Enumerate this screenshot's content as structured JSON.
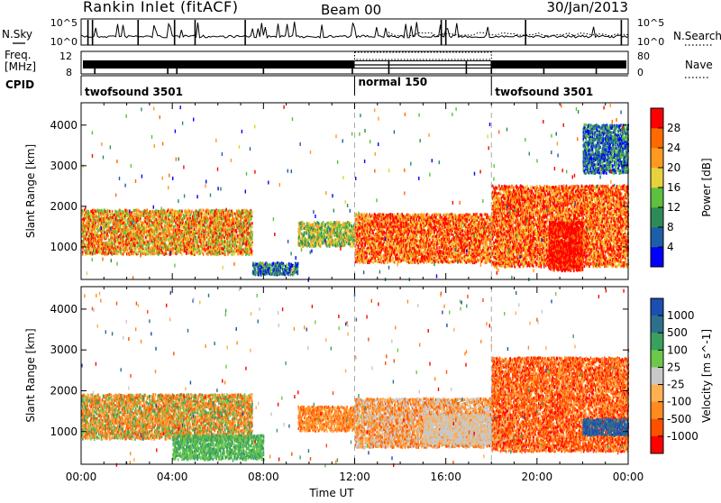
{
  "header": {
    "title": "Rankin Inlet (fitACF)",
    "beam": "Beam 00",
    "date": "30/Jan/2013"
  },
  "top_panels": {
    "nsky_label": "N.Sky",
    "nsky_ticks": [
      "10^5",
      "10^0"
    ],
    "nsearch_ticks": [
      "10^5",
      "10^0"
    ],
    "nsearch_label": "N.Search",
    "freq_label_1": "Freq.",
    "freq_label_2": "[MHz]",
    "freq_ticks": [
      "12",
      "8"
    ],
    "nave_ticks": [
      "80",
      "0"
    ],
    "nave_label": "Nave",
    "cpid_label": "CPID",
    "cpid_segments": [
      {
        "label": "twofsound 3501",
        "start_h": 0,
        "end_h": 12
      },
      {
        "label": "normal 150",
        "start_h": 12,
        "end_h": 18
      },
      {
        "label": "twofsound 3501",
        "start_h": 18,
        "end_h": 24
      }
    ]
  },
  "chart_data": [
    {
      "type": "heatmap",
      "quantity": "Power",
      "ylabel": "Slant Range [km]",
      "xlabel": "Time UT",
      "xlim_hours": [
        0,
        24
      ],
      "ylim": [
        200,
        4550
      ],
      "yticks": [
        1000,
        2000,
        3000,
        4000
      ],
      "xtick_labels": [
        "00:00",
        "04:00",
        "08:00",
        "12:00",
        "16:00",
        "20:00",
        "00:00"
      ],
      "colorbar": {
        "label": "Power [dB]",
        "ticks": [
          "4",
          "8",
          "12",
          "16",
          "20",
          "24",
          "28"
        ],
        "colors": [
          "#0000ff",
          "#1c5fa8",
          "#2e8b57",
          "#5fbf3f",
          "#e6d23c",
          "#ff9a1e",
          "#ff6a00",
          "#ff0000"
        ]
      },
      "regions": [
        {
          "t0": 0.0,
          "t1": 7.5,
          "r0": 800,
          "r1": 1900,
          "level": "medium-high"
        },
        {
          "t0": 7.5,
          "t1": 9.5,
          "r0": 300,
          "r1": 600,
          "level": "low"
        },
        {
          "t0": 9.5,
          "t1": 12.0,
          "r0": 1000,
          "r1": 1600,
          "level": "medium"
        },
        {
          "t0": 12.0,
          "t1": 18.0,
          "r0": 600,
          "r1": 1800,
          "level": "high"
        },
        {
          "t0": 18.0,
          "t1": 24.0,
          "r0": 500,
          "r1": 2500,
          "level": "high"
        },
        {
          "t0": 20.5,
          "t1": 22.0,
          "r0": 400,
          "r1": 1600,
          "level": "very-high"
        },
        {
          "t0": 22.0,
          "t1": 24.0,
          "r0": 2800,
          "r1": 4000,
          "level": "low"
        }
      ]
    },
    {
      "type": "heatmap",
      "quantity": "Velocity",
      "ylabel": "Slant Range [km]",
      "xlabel": "Time UT",
      "xlim_hours": [
        0,
        24
      ],
      "ylim": [
        200,
        4550
      ],
      "yticks": [
        1000,
        2000,
        3000,
        4000
      ],
      "xtick_labels": [
        "00:00",
        "04:00",
        "08:00",
        "12:00",
        "16:00",
        "20:00",
        "00:00"
      ],
      "colorbar": {
        "label": "Velocity [m s^-1]",
        "ticks": [
          "1000",
          "500",
          "100",
          "25",
          "-25",
          "-100",
          "-500",
          "-1000"
        ],
        "colors": [
          "#1c4fb0",
          "#2e6f8e",
          "#3aa060",
          "#6cc84a",
          "#c8c8c8",
          "#ffb050",
          "#ff8a1e",
          "#ff5000",
          "#ff0000"
        ]
      },
      "regions": [
        {
          "t0": 0.0,
          "t1": 7.5,
          "r0": 800,
          "r1": 1900,
          "level": "orange-green"
        },
        {
          "t0": 4.0,
          "t1": 8.0,
          "r0": 300,
          "r1": 900,
          "level": "green"
        },
        {
          "t0": 9.5,
          "t1": 12.0,
          "r0": 1000,
          "r1": 1600,
          "level": "orange"
        },
        {
          "t0": 12.0,
          "t1": 18.0,
          "r0": 600,
          "r1": 1800,
          "level": "orange-gray"
        },
        {
          "t0": 15.0,
          "t1": 19.0,
          "r0": 700,
          "r1": 1400,
          "level": "gray"
        },
        {
          "t0": 18.0,
          "t1": 24.0,
          "r0": 500,
          "r1": 2800,
          "level": "orange-red"
        },
        {
          "t0": 22.0,
          "t1": 24.0,
          "r0": 900,
          "r1": 1300,
          "level": "blue"
        }
      ]
    }
  ]
}
